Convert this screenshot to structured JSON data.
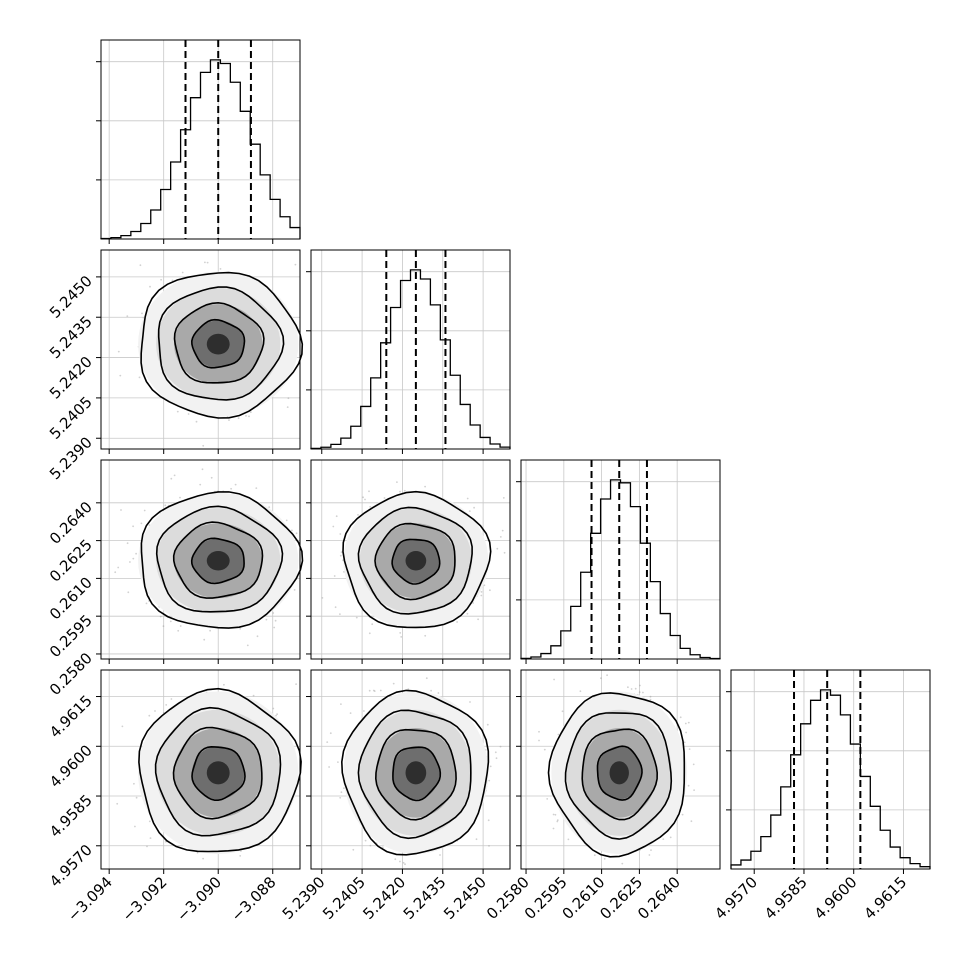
{
  "chart_data": {
    "type": "corner",
    "colors": {
      "ink": "#000000",
      "grid": "#c8c8c8",
      "scatter": "#9a9a9a"
    },
    "grid": true,
    "dimensions": [
      {
        "range": [
          -3.0943,
          -3.087
        ],
        "ticks": [
          -3.094,
          -3.092,
          -3.09,
          -3.088
        ],
        "tick_labels": [
          "−3.094",
          "−3.092",
          "−3.090",
          "−3.088"
        ],
        "quantiles": [
          -3.0912,
          -3.09,
          -3.0888
        ],
        "mean": -3.09,
        "sigma": 0.0012,
        "hist_peak": 1.0
      },
      {
        "range": [
          5.2386,
          5.246
        ],
        "ticks": [
          5.239,
          5.2405,
          5.242,
          5.2435,
          5.245
        ],
        "tick_labels": [
          "5.2390",
          "5.2405",
          "5.2420",
          "5.2435",
          "5.2450"
        ],
        "quantiles": [
          5.2414,
          5.2425,
          5.2436
        ],
        "mean": 5.2425,
        "sigma": 0.0011,
        "hist_peak": 1.0
      },
      {
        "range": [
          0.2578,
          0.2657
        ],
        "ticks": [
          0.258,
          0.2595,
          0.261,
          0.2625,
          0.264
        ],
        "tick_labels": [
          "0.2580",
          "0.2595",
          "0.2610",
          "0.2625",
          "0.2640"
        ],
        "quantiles": [
          0.2606,
          0.2617,
          0.2628
        ],
        "mean": 0.2617,
        "sigma": 0.0011,
        "hist_peak": 1.0
      },
      {
        "range": [
          4.9563,
          4.9623
        ],
        "ticks": [
          4.957,
          4.9585,
          4.96,
          4.9615
        ],
        "tick_labels": [
          "4.9570",
          "4.9585",
          "4.9600",
          "4.9615"
        ],
        "quantiles": [
          4.9582,
          4.9592,
          4.9602
        ],
        "mean": 4.9592,
        "sigma": 0.001,
        "hist_peak": 1.0
      }
    ]
  }
}
